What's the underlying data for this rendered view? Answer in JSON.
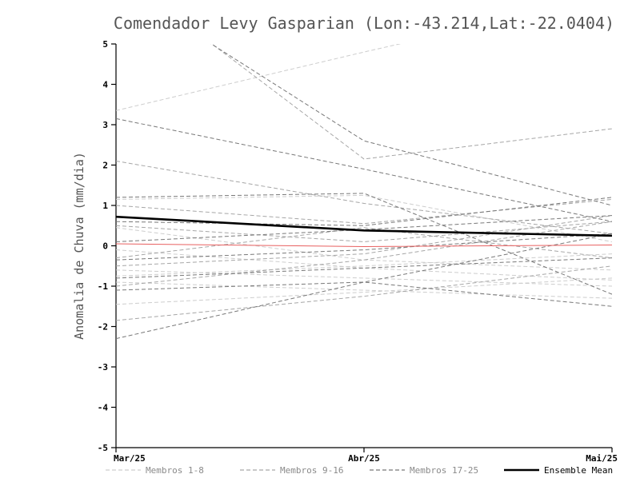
{
  "title": "Comendador Levy Gasparian (Lon:-43.214,Lat:-22.0404)",
  "ylabel": "Anomalia de Chuva (mm/dia)",
  "colors": {
    "title": "#555555",
    "axis": "#000000",
    "members_1_8": "#cdcdcd",
    "members_9_16": "#a6a6a6",
    "members_17_25": "#787878",
    "ensemble_mean": "#000000",
    "reference_zero": "#e86060",
    "legend_text": "#8a8a8a"
  },
  "chart_data": {
    "type": "line",
    "x_categories": [
      "Mar/25",
      "Abr/25",
      "Mai/25"
    ],
    "ylim": [
      -5,
      5
    ],
    "ytick_step": 1,
    "yticks": [
      5,
      4,
      3,
      2,
      1,
      0,
      -1,
      -2,
      -3,
      -4,
      -5
    ],
    "grid": false,
    "series_groups": [
      {
        "name": "Membros 1-8",
        "color": "#cdcdcd",
        "style": "dashed",
        "members": [
          [
            1.15,
            1.25,
            0.1
          ],
          [
            0.45,
            -0.35,
            -0.6
          ],
          [
            -0.1,
            -0.55,
            -0.85
          ],
          [
            -0.6,
            -0.8,
            -1.0
          ],
          [
            -0.75,
            -0.5,
            -0.2
          ],
          [
            -0.9,
            -1.1,
            -1.3
          ],
          [
            -1.45,
            -1.15,
            -0.8
          ],
          [
            3.35,
            4.8,
            6.2
          ]
        ]
      },
      {
        "name": "Membros 9-16",
        "color": "#a6a6a6",
        "style": "dashed",
        "members": [
          [
            2.1,
            1.05,
            0.3
          ],
          [
            1.0,
            0.55,
            1.15
          ],
          [
            0.5,
            0.1,
            0.6
          ],
          [
            -0.3,
            0.45,
            -0.3
          ],
          [
            -0.5,
            -0.2,
            0.75
          ],
          [
            -1.0,
            -0.35,
            0.6
          ],
          [
            -1.85,
            -1.25,
            -0.5
          ],
          [
            6.8,
            2.15,
            2.9
          ]
        ]
      },
      {
        "name": "Membros 17-25",
        "color": "#787878",
        "style": "dashed",
        "members": [
          [
            3.15,
            1.9,
            0.6
          ],
          [
            1.2,
            1.3,
            -1.2
          ],
          [
            0.6,
            0.5,
            1.2
          ],
          [
            0.1,
            0.4,
            0.75
          ],
          [
            -0.35,
            -0.1,
            0.3
          ],
          [
            -0.8,
            -0.55,
            -0.3
          ],
          [
            -1.1,
            -0.9,
            -1.5
          ],
          [
            -2.3,
            -0.9,
            0.3
          ],
          [
            6.5,
            2.6,
            1.0
          ]
        ]
      }
    ],
    "reference_line": {
      "name": "zero-anomaly",
      "color": "#e86060",
      "values": [
        0.05,
        -0.02,
        0.02
      ]
    },
    "ensemble_mean": {
      "name": "Ensemble Mean",
      "color": "#000000",
      "values": [
        0.72,
        0.38,
        0.25
      ]
    }
  },
  "legend": [
    {
      "label": "Membros 1-8",
      "line_color": "#cdcdcd",
      "text_color": "#8a8a8a",
      "style": "dashed"
    },
    {
      "label": "Membros 9-16",
      "line_color": "#a6a6a6",
      "text_color": "#8a8a8a",
      "style": "dashed"
    },
    {
      "label": "Membros 17-25",
      "line_color": "#787878",
      "text_color": "#8a8a8a",
      "style": "dashed"
    },
    {
      "label": "Ensemble Mean",
      "line_color": "#000000",
      "text_color": "#000000",
      "style": "solid"
    }
  ]
}
